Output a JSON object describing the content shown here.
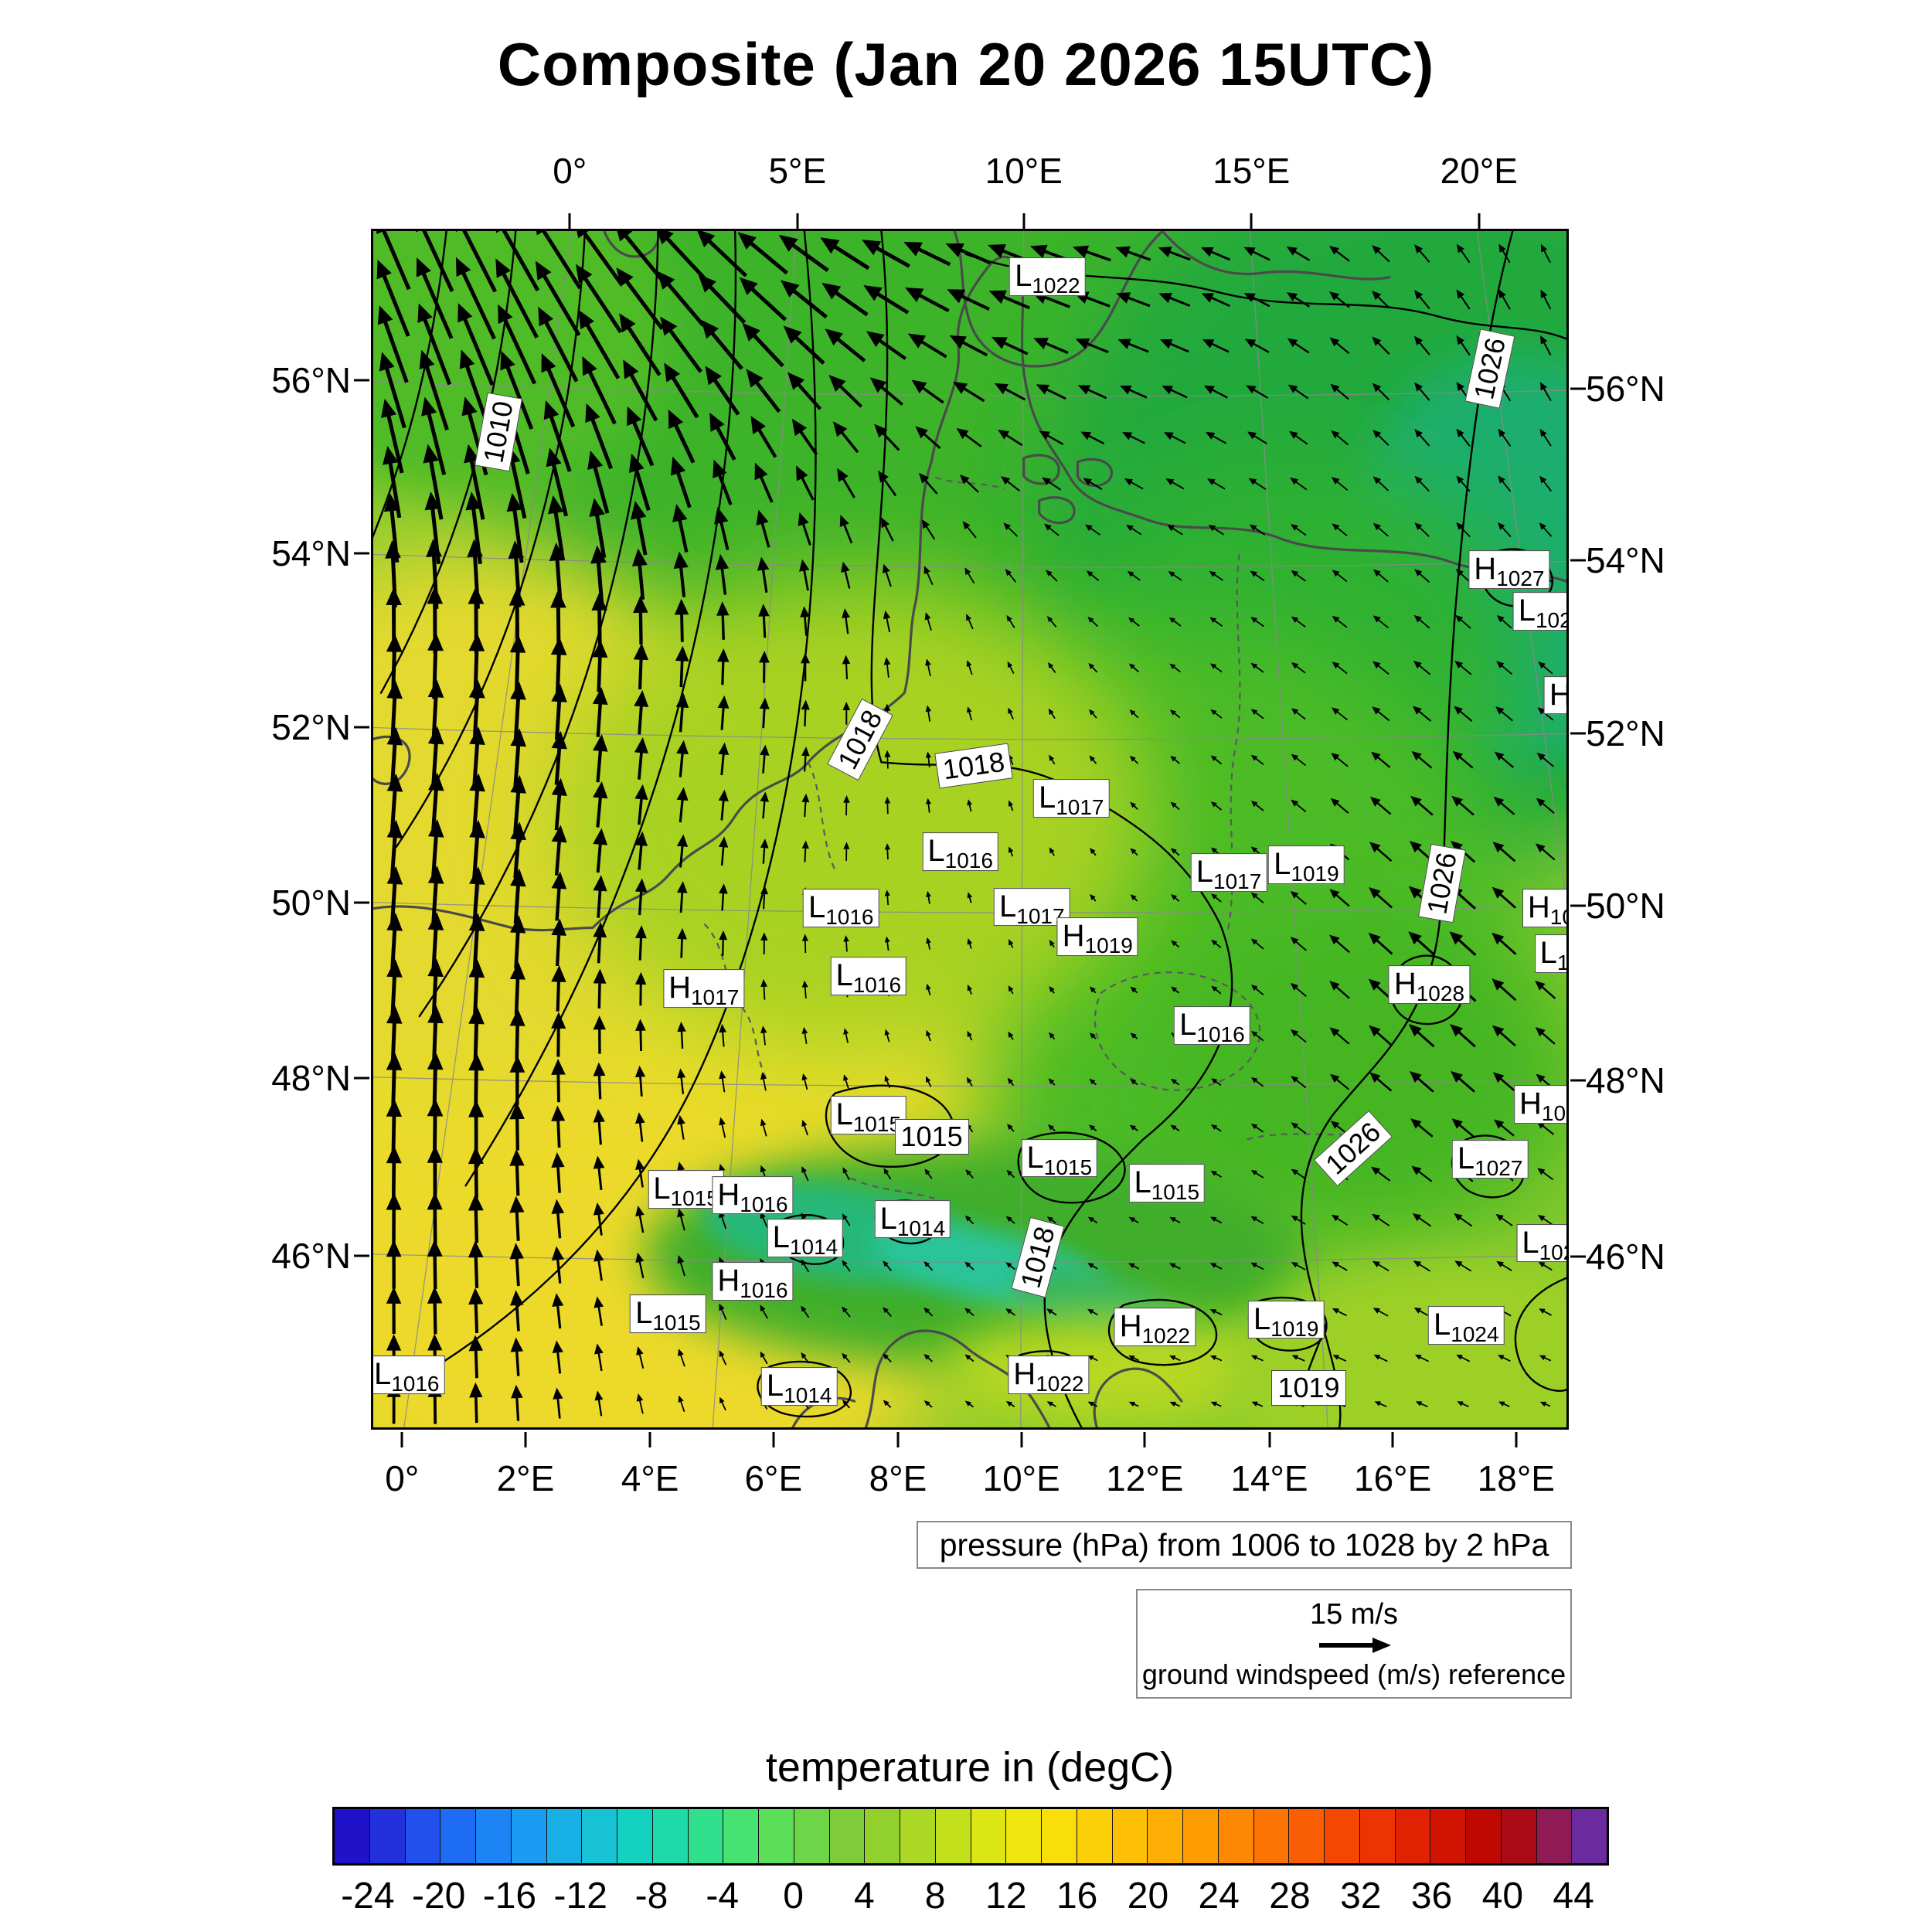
{
  "title": "Composite (Jan 20 2026 15UTC)",
  "caption": {
    "text": "pressure (hPa) from 1006 to 1028 by 2 hPa"
  },
  "wind_legend": {
    "speed": "15 m/s",
    "label": "ground windspeed (m/s) reference"
  },
  "colorbar": {
    "title": "temperature in (degC)",
    "range": [
      -26,
      46
    ],
    "ticks": [
      -24,
      -20,
      -16,
      -12,
      -8,
      -4,
      0,
      4,
      8,
      12,
      16,
      20,
      24,
      28,
      32,
      36,
      40,
      44
    ],
    "colors": [
      "#2012c8",
      "#2430dc",
      "#2150ec",
      "#1f6cf4",
      "#1d84f6",
      "#1a9cf2",
      "#18b0e4",
      "#16c2d4",
      "#14d2c0",
      "#1edaa8",
      "#30e08c",
      "#46e272",
      "#5bde58",
      "#6cd648",
      "#7ecc3a",
      "#92d02e",
      "#aad824",
      "#c2e01c",
      "#dce614",
      "#eee60e",
      "#f8de0a",
      "#fcd008",
      "#fdc006",
      "#feae05",
      "#fe9c04",
      "#fd8803",
      "#fc7403",
      "#f95e02",
      "#f44802",
      "#ec3402",
      "#e02202",
      "#d11302",
      "#c00802",
      "#ab0b16",
      "#8f1a55",
      "#6b2a9e"
    ]
  },
  "axes": {
    "top": {
      "labels": [
        "0°",
        "5°E",
        "10°E",
        "15°E",
        "20°E"
      ],
      "fracs": [
        0.166,
        0.356,
        0.545,
        0.735,
        0.925
      ]
    },
    "bottom": {
      "labels": [
        "0°",
        "2°E",
        "4°E",
        "6°E",
        "8°E",
        "10°E",
        "12°E",
        "14°E",
        "16°E",
        "18°E"
      ],
      "fracs": [
        0.026,
        0.129,
        0.233,
        0.336,
        0.44,
        0.543,
        0.646,
        0.75,
        0.853,
        0.956
      ]
    },
    "left": {
      "labels": [
        "56°N",
        "54°N",
        "52°N",
        "50°N",
        "48°N",
        "46°N"
      ],
      "fracs": [
        0.126,
        0.27,
        0.415,
        0.561,
        0.707,
        0.855
      ]
    },
    "right": {
      "labels": [
        "56°N",
        "54°N",
        "52°N",
        "50°N",
        "48°N",
        "46°N"
      ],
      "fracs": [
        0.133,
        0.276,
        0.42,
        0.564,
        0.709,
        0.856
      ]
    }
  },
  "chart_data": {
    "type": "heatmap",
    "title": "Composite (Jan 20 2026 15UTC)",
    "region": {
      "lon_ticks_top": [
        "0°",
        "5°E",
        "10°E",
        "15°E",
        "20°E"
      ],
      "lon_ticks_bottom": [
        "0°",
        "2°E",
        "4°E",
        "6°E",
        "8°E",
        "10°E",
        "12°E",
        "14°E",
        "16°E",
        "18°E"
      ],
      "lat_ticks": [
        "56°N",
        "54°N",
        "52°N",
        "50°N",
        "48°N",
        "46°N"
      ]
    },
    "fields": [
      {
        "name": "temperature",
        "units": "degC",
        "render": "filled shading",
        "range": [
          -26,
          46
        ],
        "tick_step": 4
      },
      {
        "name": "pressure",
        "units": "hPa",
        "render": "contours",
        "min": 1006,
        "max": 1028,
        "interval": 2,
        "inline_contour_values": [
          1010,
          1015,
          1018,
          1019,
          1022,
          1026
        ]
      },
      {
        "name": "ground windspeed",
        "units": "m/s",
        "render": "vectors",
        "reference": 15
      }
    ],
    "pressure_labels": [
      {
        "kind": "L",
        "sub": "1022",
        "x": 0.565,
        "y": 0.038
      },
      {
        "text": "1026",
        "rot": -78,
        "x": 0.936,
        "y": 0.115
      },
      {
        "text": "1010",
        "rot": -80,
        "x": 0.105,
        "y": 0.168
      },
      {
        "kind": "H",
        "sub": "1027",
        "x": 0.952,
        "y": 0.283
      },
      {
        "kind": "L",
        "sub": "102",
        "x": 0.982,
        "y": 0.318
      },
      {
        "kind": "H",
        "sub": "",
        "x": 0.995,
        "y": 0.388
      },
      {
        "text": "1018",
        "rot": -62,
        "x": 0.408,
        "y": 0.425
      },
      {
        "text": "1018",
        "rot": -8,
        "x": 0.503,
        "y": 0.447
      },
      {
        "kind": "L",
        "sub": "1017",
        "x": 0.585,
        "y": 0.474
      },
      {
        "kind": "L",
        "sub": "1016",
        "x": 0.492,
        "y": 0.519
      },
      {
        "kind": "L",
        "sub": "1017",
        "x": 0.717,
        "y": 0.536
      },
      {
        "kind": "L",
        "sub": "1019",
        "x": 0.782,
        "y": 0.53
      },
      {
        "text": "1026",
        "rot": -80,
        "x": 0.896,
        "y": 0.545
      },
      {
        "kind": "L",
        "sub": "1016",
        "x": 0.392,
        "y": 0.566
      },
      {
        "kind": "L",
        "sub": "1017",
        "x": 0.552,
        "y": 0.565
      },
      {
        "kind": "H",
        "sub": "1019",
        "x": 0.607,
        "y": 0.59
      },
      {
        "kind": "H",
        "sub": "10",
        "x": 0.987,
        "y": 0.566
      },
      {
        "kind": "L",
        "sub": "1",
        "x": 0.99,
        "y": 0.604
      },
      {
        "kind": "L",
        "sub": "1016",
        "x": 0.415,
        "y": 0.623
      },
      {
        "kind": "H",
        "sub": "1017",
        "x": 0.277,
        "y": 0.633
      },
      {
        "kind": "H",
        "sub": "1028",
        "x": 0.885,
        "y": 0.63
      },
      {
        "kind": "L",
        "sub": "1016",
        "x": 0.703,
        "y": 0.664
      },
      {
        "kind": "L",
        "sub": "1015",
        "x": 0.415,
        "y": 0.739
      },
      {
        "text": "1015",
        "x": 0.468,
        "y": 0.757
      },
      {
        "kind": "L",
        "sub": "1015",
        "x": 0.575,
        "y": 0.775
      },
      {
        "kind": "H",
        "sub": "102",
        "x": 0.985,
        "y": 0.73
      },
      {
        "kind": "L",
        "sub": "1027",
        "x": 0.936,
        "y": 0.776
      },
      {
        "text": "1026",
        "rot": -42,
        "x": 0.821,
        "y": 0.767
      },
      {
        "kind": "L",
        "sub": "1015",
        "x": 0.665,
        "y": 0.796
      },
      {
        "kind": "L",
        "sub": "1015",
        "x": 0.262,
        "y": 0.801
      },
      {
        "kind": "H",
        "sub": "1016",
        "x": 0.318,
        "y": 0.806
      },
      {
        "kind": "L",
        "sub": "1014",
        "x": 0.362,
        "y": 0.842
      },
      {
        "kind": "L",
        "sub": "1014",
        "x": 0.452,
        "y": 0.826
      },
      {
        "text": "1018",
        "rot": -75,
        "x": 0.557,
        "y": 0.858
      },
      {
        "kind": "H",
        "sub": "1016",
        "x": 0.318,
        "y": 0.878
      },
      {
        "kind": "L",
        "sub": "102",
        "x": 0.985,
        "y": 0.846
      },
      {
        "kind": "L",
        "sub": "1015",
        "x": 0.247,
        "y": 0.905
      },
      {
        "kind": "H",
        "sub": "1022",
        "x": 0.655,
        "y": 0.916
      },
      {
        "kind": "L",
        "sub": "1019",
        "x": 0.765,
        "y": 0.91
      },
      {
        "kind": "L",
        "sub": "1024",
        "x": 0.916,
        "y": 0.915
      },
      {
        "kind": "L",
        "sub": "1016",
        "x": 0.028,
        "y": 0.956
      },
      {
        "kind": "L",
        "sub": "1014",
        "x": 0.357,
        "y": 0.966
      },
      {
        "kind": "H",
        "sub": "1022",
        "x": 0.566,
        "y": 0.956
      },
      {
        "text": "1019",
        "x": 0.784,
        "y": 0.967
      }
    ],
    "wind_field": {
      "cols": 29,
      "rows": 26,
      "reference_speed": 15,
      "reference_length": 70,
      "components": [
        {
          "u": 1.0,
          "v": 14.0,
          "cx": 0.03,
          "cy": 0.45,
          "sx": 0.13,
          "sy": 0.65
        },
        {
          "u": -12.0,
          "v": 2.5,
          "cx": 0.38,
          "cy": 0.0,
          "sx": 0.28,
          "sy": 0.15
        },
        {
          "u": -5.0,
          "v": 7.0,
          "cx": 0.1,
          "cy": 0.04,
          "sx": 0.16,
          "sy": 0.16
        },
        {
          "u": -3.0,
          "v": 2.0,
          "cx": 0.88,
          "cy": 0.3,
          "sx": 0.28,
          "sy": 0.28
        },
        {
          "u": -5.0,
          "v": 5.0,
          "cx": 0.9,
          "cy": 0.63,
          "sx": 0.1,
          "sy": 0.16
        },
        {
          "u": -2.5,
          "v": 0.8,
          "cx": 0.82,
          "cy": 0.93,
          "sx": 0.25,
          "sy": 0.14
        },
        {
          "u": -1.8,
          "v": 1.8,
          "cx": 0.28,
          "cy": 0.86,
          "sx": 0.22,
          "sy": 0.18
        },
        {
          "u": 1.5,
          "v": 7.0,
          "cx": 0.28,
          "cy": 0.28,
          "sx": 0.16,
          "sy": 0.3
        },
        {
          "u": 0.5,
          "v": 3.5,
          "cx": 0.97,
          "cy": 0.06,
          "sx": 0.15,
          "sy": 0.14
        }
      ]
    }
  }
}
